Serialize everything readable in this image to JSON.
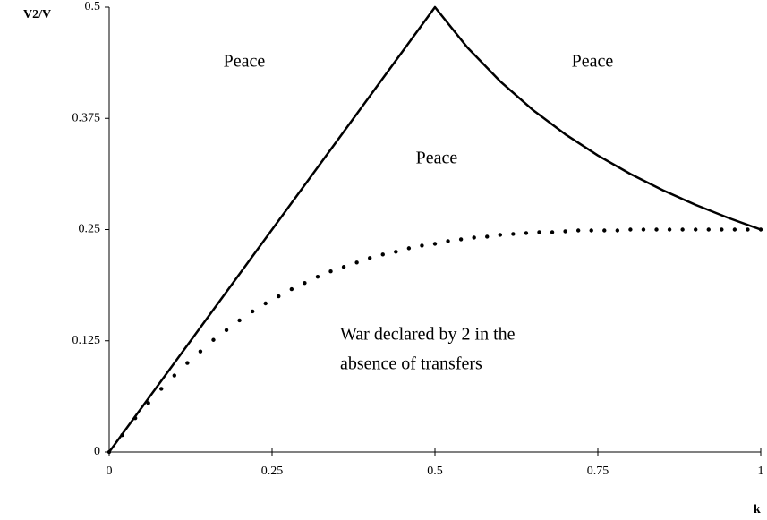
{
  "chart_data": {
    "type": "line",
    "y_label": "V2/V",
    "x_label": "k",
    "xlim": [
      0,
      1
    ],
    "ylim": [
      0,
      0.5
    ],
    "xticks": [
      0,
      0.25,
      0.5,
      0.75,
      1
    ],
    "yticks": [
      0,
      0.125,
      0.25,
      0.375,
      0.5
    ],
    "annotations": [
      "Peace",
      "Peace",
      "Peace",
      "War declared by 2 in the",
      "absence of transfers"
    ],
    "series": [
      {
        "style": "solid",
        "color": "#000000",
        "x": [
          0,
          0.5,
          0.55,
          0.6,
          0.65,
          0.7,
          0.75,
          0.8,
          0.85,
          0.9,
          0.95,
          1
        ],
        "values": [
          0,
          0.5,
          0.4545,
          0.4167,
          0.3846,
          0.3571,
          0.3333,
          0.3125,
          0.2941,
          0.2778,
          0.2632,
          0.25
        ]
      },
      {
        "style": "dotted",
        "color": "#000000",
        "x": [
          0,
          0.02,
          0.04,
          0.06,
          0.08,
          0.1,
          0.12,
          0.14,
          0.16,
          0.18,
          0.2,
          0.22,
          0.24,
          0.26,
          0.28,
          0.3,
          0.32,
          0.34,
          0.36,
          0.38,
          0.4,
          0.42,
          0.44,
          0.46,
          0.48,
          0.5,
          0.52,
          0.54,
          0.56,
          0.58,
          0.6,
          0.62,
          0.64,
          0.66,
          0.68,
          0.7,
          0.72,
          0.74,
          0.76,
          0.78,
          0.8,
          0.82,
          0.84,
          0.86,
          0.88,
          0.9,
          0.92,
          0.94,
          0.96,
          0.98,
          1
        ],
        "values": [
          0,
          0.019,
          0.038,
          0.055,
          0.071,
          0.086,
          0.1,
          0.113,
          0.126,
          0.137,
          0.148,
          0.158,
          0.167,
          0.175,
          0.183,
          0.19,
          0.197,
          0.203,
          0.208,
          0.213,
          0.218,
          0.222,
          0.225,
          0.229,
          0.232,
          0.234,
          0.237,
          0.239,
          0.241,
          0.242,
          0.244,
          0.245,
          0.246,
          0.247,
          0.247,
          0.248,
          0.249,
          0.249,
          0.249,
          0.249,
          0.25,
          0.25,
          0.25,
          0.25,
          0.25,
          0.25,
          0.25,
          0.25,
          0.25,
          0.25,
          0.25
        ]
      }
    ]
  }
}
